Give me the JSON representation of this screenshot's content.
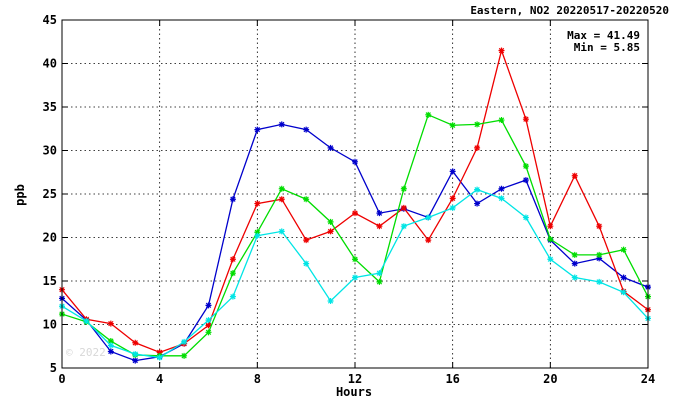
{
  "chart_data": {
    "type": "line",
    "title": "Eastern, NO2 20220517-20220520",
    "xlabel": "Hours",
    "ylabel": "ppb",
    "xlim": [
      0,
      24
    ],
    "ylim": [
      5,
      45
    ],
    "x_ticks": [
      0,
      4,
      8,
      12,
      16,
      20,
      24
    ],
    "y_ticks": [
      5,
      10,
      15,
      20,
      25,
      30,
      35,
      40,
      45
    ],
    "grid": true,
    "marker": "asterisk",
    "max_label": "Max = 41.49",
    "min_label": "Min =  5.85",
    "watermark": "© 2022",
    "x": [
      0,
      1,
      2,
      3,
      4,
      5,
      6,
      7,
      8,
      9,
      10,
      11,
      12,
      13,
      14,
      15,
      16,
      17,
      18,
      19,
      20,
      21,
      22,
      23,
      24
    ],
    "series": [
      {
        "color": "#0000cc",
        "values": [
          13.0,
          10.5,
          6.9,
          5.85,
          6.3,
          7.8,
          12.2,
          24.4,
          32.4,
          33.0,
          32.4,
          30.3,
          28.7,
          22.8,
          23.3,
          22.3,
          27.6,
          23.9,
          25.6,
          26.6,
          19.7,
          17.0,
          17.6,
          15.4,
          14.3
        ]
      },
      {
        "color": "#ee0000",
        "values": [
          14.0,
          10.6,
          10.1,
          7.9,
          6.8,
          7.8,
          9.9,
          17.5,
          23.9,
          24.4,
          19.7,
          20.7,
          22.8,
          21.3,
          23.4,
          19.7,
          24.5,
          30.3,
          41.49,
          33.6,
          21.3,
          27.1,
          21.3,
          13.8,
          11.7
        ]
      },
      {
        "color": "#00dd00",
        "values": [
          11.2,
          10.3,
          8.1,
          6.5,
          6.4,
          6.4,
          9.1,
          15.9,
          20.6,
          25.6,
          24.4,
          21.8,
          17.5,
          14.9,
          25.6,
          34.1,
          32.9,
          33.0,
          33.5,
          28.2,
          19.8,
          18.0,
          18.0,
          18.6,
          13.2
        ]
      },
      {
        "color": "#00e5e5",
        "values": [
          12.1,
          10.4,
          7.6,
          6.6,
          6.2,
          8.0,
          10.5,
          13.2,
          20.2,
          20.7,
          17.0,
          12.7,
          15.4,
          15.9,
          21.3,
          22.3,
          23.4,
          25.5,
          24.5,
          22.3,
          17.5,
          15.4,
          14.9,
          13.7,
          10.7
        ]
      }
    ]
  }
}
